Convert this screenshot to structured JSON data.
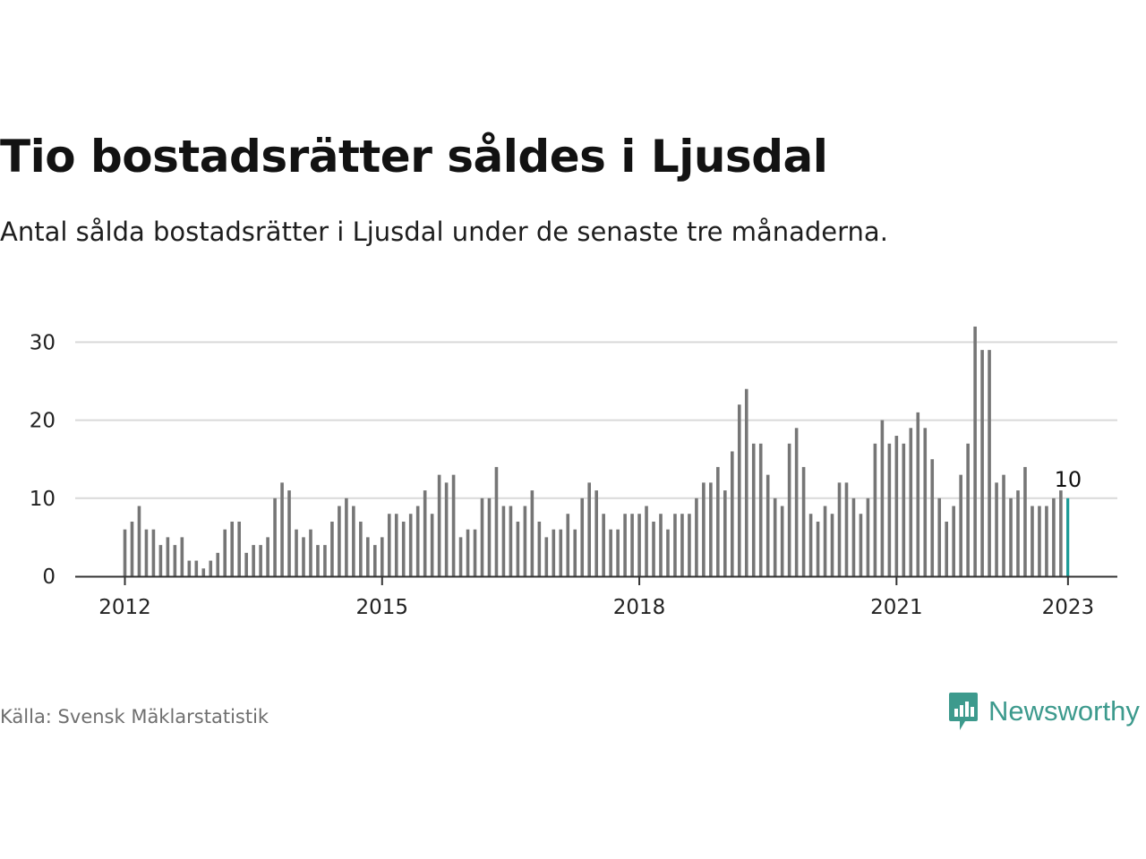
{
  "title": "Tio bostadsrätter såldes i Ljusdal",
  "subtitle": "Antal sålda bostadsrätter i Ljusdal under de senaste tre månaderna.",
  "source": "Källa: Svensk Mäklarstatistik",
  "brand": {
    "name": "Newsworthy",
    "icon": "newsworthy-logo-icon",
    "color": "#3d9a8d"
  },
  "colors": {
    "bar": "#767676",
    "highlight": "#1a9b97",
    "grid": "#d9d9d9",
    "axis": "#333333",
    "text": "#222222"
  },
  "chart_data": {
    "type": "bar",
    "title": "Tio bostadsrätter såldes i Ljusdal",
    "subtitle": "Antal sålda bostadsrätter i Ljusdal under de senaste tre månaderna.",
    "xlabel": "",
    "ylabel": "",
    "ylim": [
      0,
      32
    ],
    "yticks": [
      0,
      10,
      20,
      30
    ],
    "xticks": [
      "2012",
      "2015",
      "2018",
      "2021",
      "2023"
    ],
    "grid": "horizontal",
    "start": "2012-01",
    "end": "2023-01",
    "highlight_last": true,
    "last_label": "10",
    "values": [
      6,
      7,
      9,
      6,
      6,
      4,
      5,
      4,
      5,
      2,
      2,
      1,
      2,
      3,
      6,
      7,
      7,
      3,
      4,
      4,
      5,
      10,
      12,
      11,
      6,
      5,
      6,
      4,
      4,
      7,
      9,
      10,
      9,
      7,
      5,
      4,
      5,
      8,
      8,
      7,
      8,
      9,
      11,
      8,
      13,
      12,
      13,
      5,
      6,
      6,
      10,
      10,
      14,
      9,
      9,
      7,
      9,
      11,
      7,
      5,
      6,
      6,
      8,
      6,
      10,
      12,
      11,
      8,
      6,
      6,
      8,
      8,
      8,
      9,
      7,
      8,
      6,
      8,
      8,
      8,
      10,
      12,
      12,
      14,
      11,
      16,
      22,
      24,
      17,
      17,
      13,
      10,
      9,
      17,
      19,
      14,
      8,
      7,
      9,
      8,
      12,
      12,
      10,
      8,
      10,
      17,
      20,
      17,
      18,
      17,
      19,
      21,
      19,
      15,
      10,
      7,
      9,
      13,
      17,
      32,
      29,
      29,
      12,
      13,
      10,
      11,
      14,
      9,
      9,
      9,
      10,
      11,
      10
    ]
  }
}
